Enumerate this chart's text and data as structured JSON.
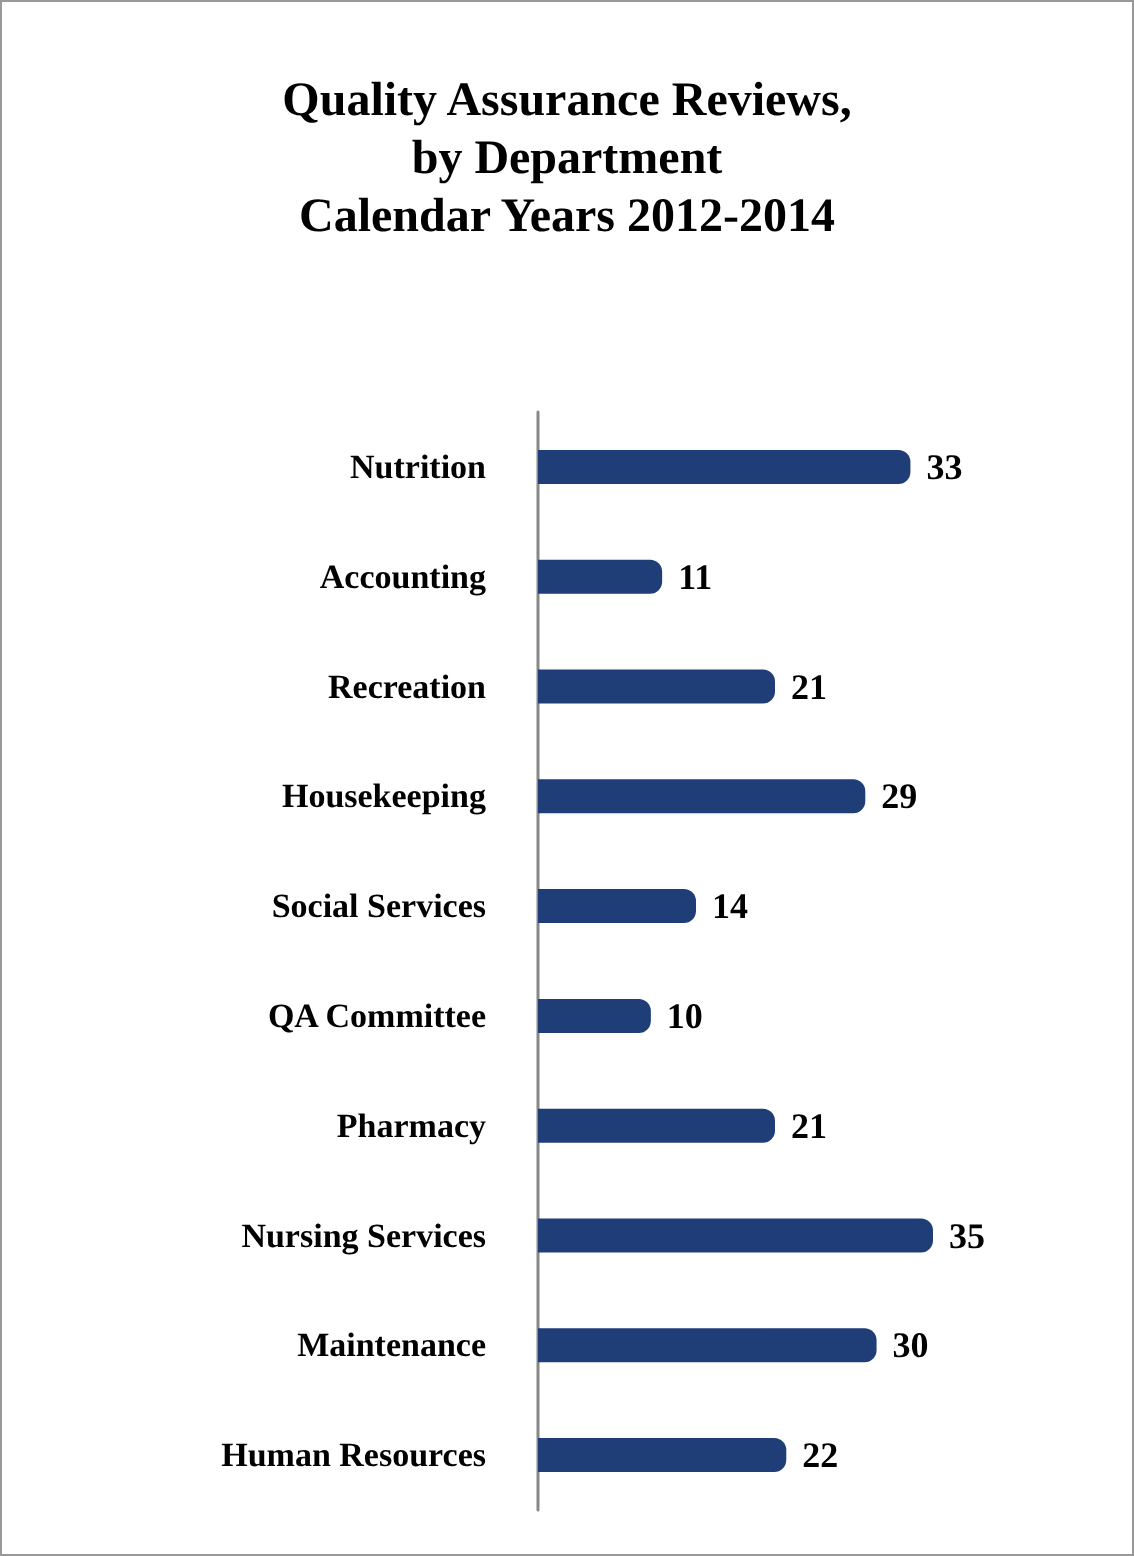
{
  "chart_data": {
    "type": "bar",
    "orientation": "horizontal",
    "title": "Quality Assurance Reviews,\nby Department\nCalendar Years 2012-2014",
    "categories": [
      "Nutrition",
      "Accounting",
      "Recreation",
      "Housekeeping",
      "Social Services",
      "QA Committee",
      "Pharmacy",
      "Nursing Services",
      "Maintenance",
      "Human Resources"
    ],
    "values": [
      33,
      11,
      21,
      29,
      14,
      10,
      21,
      35,
      30,
      22
    ],
    "color": "#1f3e78",
    "data_labels": true
  }
}
